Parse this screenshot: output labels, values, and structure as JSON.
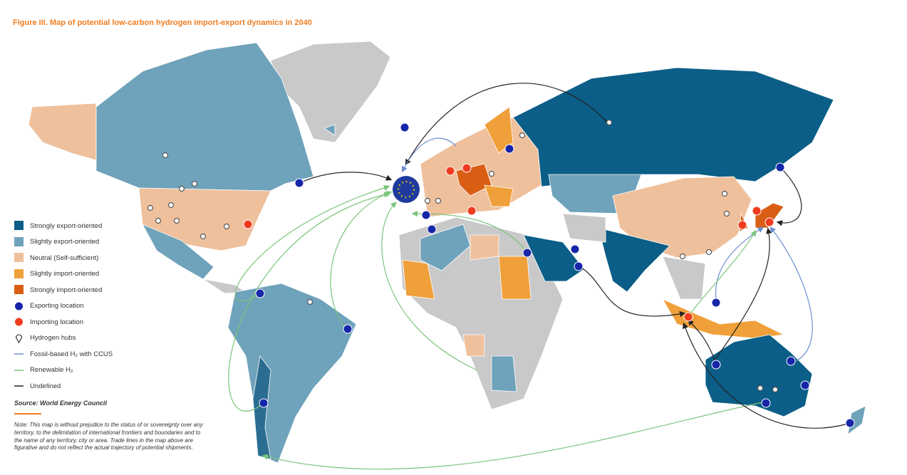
{
  "title": "Figure III. Map of potential low-carbon hydrogen import-export dynamics in 2040",
  "legend": [
    "Strongly export-oriented",
    "Slightly export-oriented",
    "Neutral (Self-sufficient)",
    "Slightly import-oriented",
    "Strongly import-oriented",
    "Exporting location",
    "Importing location",
    "Hydrogen hubs",
    "Fossil-based H₂ with CCUS",
    "Renewable H₂",
    "Undefined"
  ],
  "source": "Source: World Energy Council",
  "note": "Note: This map is without prejudice to the status of or sovereignty over any territory, to the delimitation of international frontiers and boundaries and to the name of any territory, city or area. Trade lines in the map above are figurative and do not reflect the actual trajectory of potential shipments."
}
